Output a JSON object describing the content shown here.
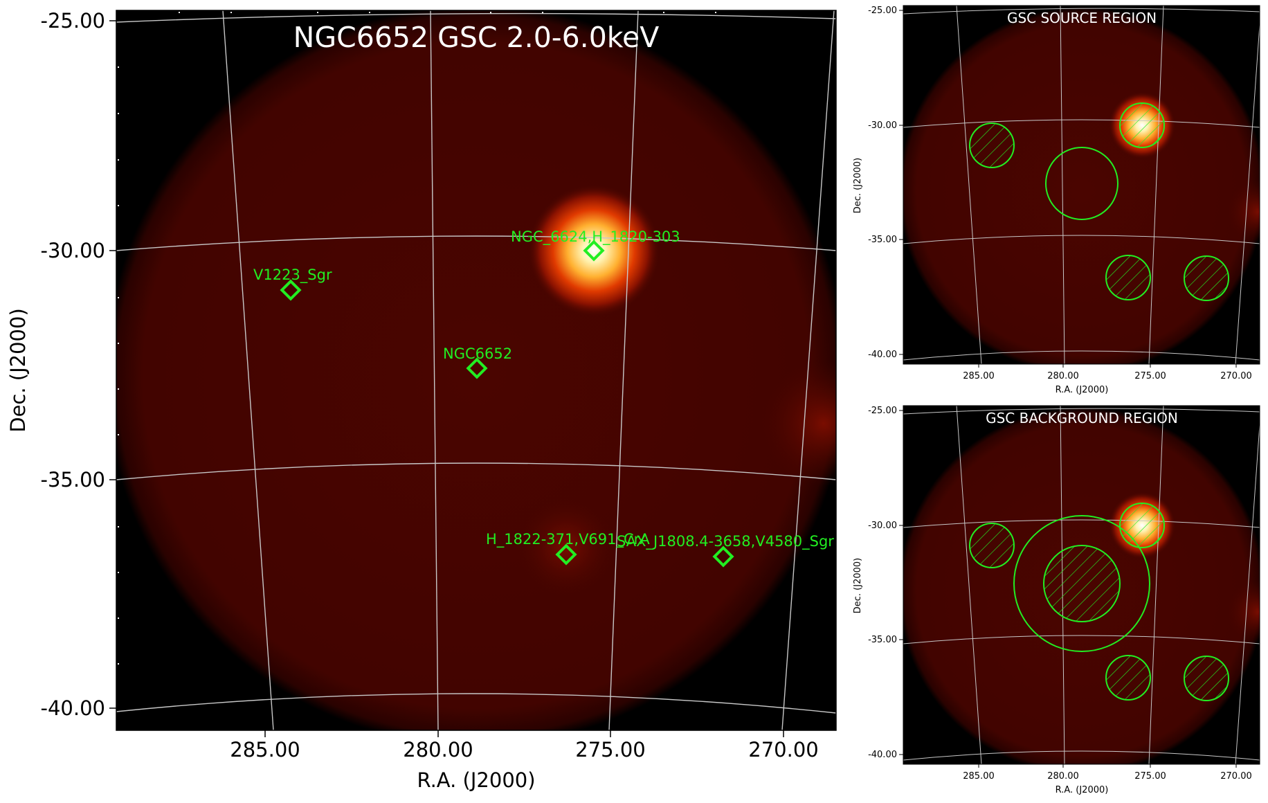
{
  "main": {
    "title": "NGC6652 GSC 2.0-6.0keV",
    "xlabel": "R.A. (J2000)",
    "ylabel": "Dec. (J2000)",
    "xticks": [
      "285.00",
      "280.00",
      "275.00",
      "270.00"
    ],
    "yticks": [
      "-25.00",
      "-30.00",
      "-35.00",
      "-40.00"
    ],
    "sources": [
      {
        "label": "NGC_6624,H_1820-303"
      },
      {
        "label": "V1223_Sgr"
      },
      {
        "label": "NGC6652"
      },
      {
        "label": "H_1822-371,V691_CrA"
      },
      {
        "label": "SAX_J1808.4-3658,V4580_Sgr"
      }
    ]
  },
  "source_panel": {
    "title": "GSC SOURCE REGION",
    "xlabel": "R.A. (J2000)",
    "ylabel": "Dec. (J2000)",
    "xticks": [
      "285.00",
      "280.00",
      "275.00",
      "270.00"
    ],
    "yticks": [
      "-25.00",
      "-30.00",
      "-35.00",
      "-40.00"
    ]
  },
  "background_panel": {
    "title": "GSC BACKGROUND REGION",
    "xlabel": "R.A. (J2000)",
    "ylabel": "Dec. (J2000)",
    "xticks": [
      "285.00",
      "280.00",
      "275.00",
      "270.00"
    ],
    "yticks": [
      "-25.00",
      "-30.00",
      "-35.00",
      "-40.00"
    ]
  },
  "colors": {
    "region_green": "#22ee22",
    "grid": "#c8c8c8",
    "field_red": "#4a0500",
    "bright_core": "#ffffff"
  }
}
